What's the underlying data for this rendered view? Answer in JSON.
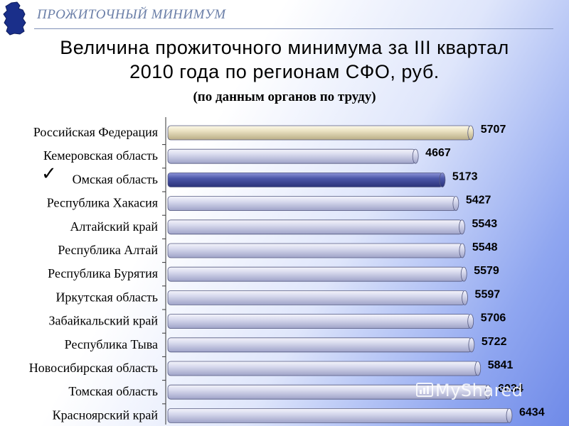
{
  "header": {
    "text": "ПРОЖИТОЧНЫЙ МИНИМУМ"
  },
  "title_line1": "Величина прожиточного минимума за III квартал",
  "title_line2": "2010 года по регионам СФО, руб.",
  "subtitle": "(по данным органов по труду)",
  "checkmark": "✓",
  "watermark": "MyShared",
  "colors": {
    "bar_default": "#c8cbe2",
    "bar_highlight_russia": "#e8e0c0",
    "bar_highlight_omsk": "#4a55a0"
  },
  "chart_data": {
    "type": "bar",
    "orientation": "horizontal",
    "title": "Величина прожиточного минимума за III квартал 2010 года по регионам СФО, руб.",
    "subtitle": "(по данным органов по труду)",
    "categories": [
      "Российская Федерация",
      "Кемеровская область",
      "Омская область",
      "Республика Хакасия",
      "Алтайский край",
      "Республика Алтай",
      "Республика Бурятия",
      "Иркутская область",
      "Забайкальский край",
      "Республика Тыва",
      "Новосибирская область",
      "Томская область",
      "Красноярский край"
    ],
    "values": [
      5707,
      4667,
      5173,
      5427,
      5543,
      5548,
      5579,
      5597,
      5706,
      5722,
      5841,
      6034,
      6434
    ],
    "highlight": {
      "Российская Федерация": "tan",
      "Омская область": "dark-blue"
    },
    "grid": false,
    "legend": "none"
  }
}
